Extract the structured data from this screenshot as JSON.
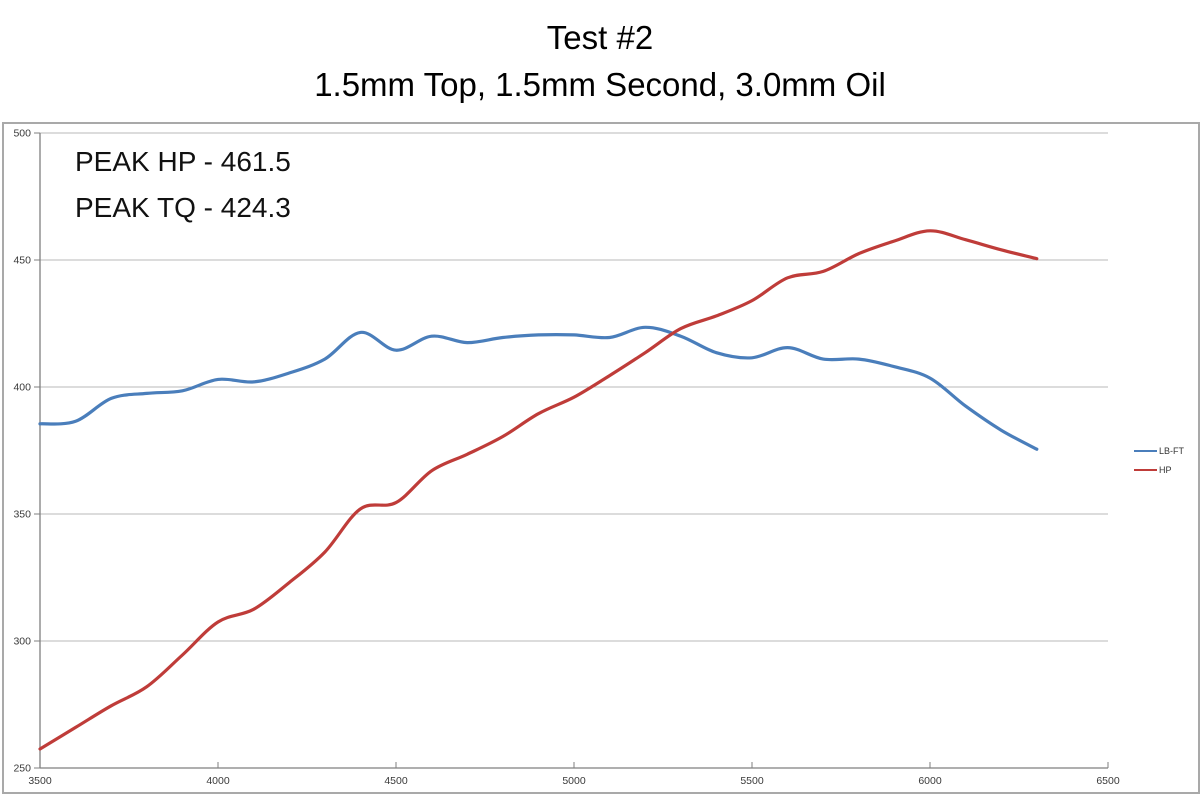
{
  "chart_data": {
    "type": "line",
    "title": "Test #2",
    "subtitle": "1.5mm Top, 1.5mm Second, 3.0mm Oil",
    "annotations": [
      "PEAK HP - 461.5",
      "PEAK TQ - 424.3"
    ],
    "peaks": {
      "hp": 461.5,
      "tq": 424.3
    },
    "xlabel": "",
    "ylabel": "",
    "xlim": [
      3500,
      6500
    ],
    "ylim": [
      250,
      500
    ],
    "x_ticks": [
      3500,
      4000,
      4500,
      5000,
      5500,
      6000,
      6500
    ],
    "y_ticks": [
      250,
      300,
      350,
      400,
      450,
      500
    ],
    "grid": "horizontal",
    "legend_position": "right",
    "x": [
      3500,
      3600,
      3700,
      3800,
      3900,
      4000,
      4100,
      4200,
      4300,
      4400,
      4500,
      4600,
      4700,
      4800,
      4900,
      5000,
      5100,
      5200,
      5300,
      5400,
      5500,
      5600,
      5700,
      5800,
      5900,
      6000,
      6100,
      6200,
      6300
    ],
    "series": [
      {
        "name": "LB-FT",
        "color": "#4a7ebb",
        "values": [
          385.5,
          386.5,
          395.5,
          397.5,
          398.5,
          403.0,
          402.0,
          405.5,
          411.0,
          421.5,
          414.5,
          420.0,
          417.5,
          419.5,
          420.5,
          420.5,
          419.5,
          423.5,
          420.0,
          413.5,
          411.5,
          415.5,
          411.0,
          411.0,
          408.0,
          403.5,
          392.5,
          383.0,
          375.5
        ]
      },
      {
        "name": "HP",
        "color": "#bf3c39",
        "values": [
          257.5,
          266.0,
          274.5,
          282.0,
          294.5,
          307.5,
          312.5,
          323.0,
          335.0,
          352.0,
          354.5,
          367.0,
          373.5,
          380.5,
          389.5,
          396.0,
          404.5,
          413.5,
          423.0,
          428.0,
          434.0,
          443.0,
          445.5,
          452.5,
          457.5,
          461.5,
          458.0,
          454.0,
          450.5
        ]
      }
    ],
    "axis_color": "#7f7f7f",
    "gridline_color": "#b9b9b9",
    "tick_label_color": "#3a3a3a"
  }
}
